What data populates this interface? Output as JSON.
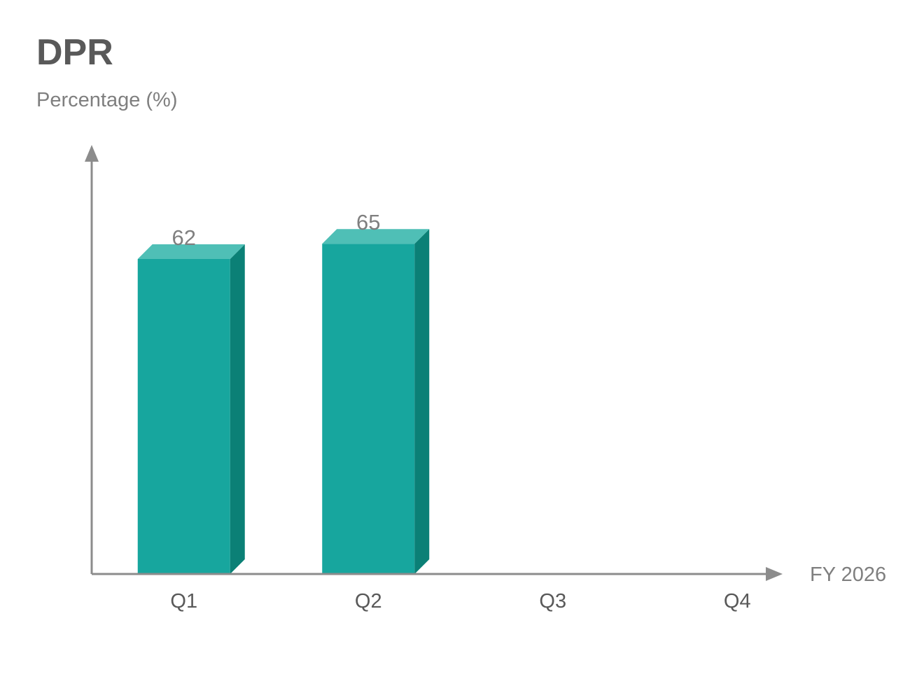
{
  "chart_data": {
    "type": "bar",
    "title": "DPR",
    "ylabel": "Percentage (%)",
    "xlabel": "FY 2026",
    "categories": [
      "Q1",
      "Q2",
      "Q3",
      "Q4"
    ],
    "values": [
      62,
      65,
      null,
      null
    ],
    "value_labels": [
      "62",
      "65",
      "",
      ""
    ],
    "ylim": [
      0,
      80
    ],
    "grid": false,
    "legend": "none",
    "style": "3d",
    "colors": {
      "bar_front": "#17a69e",
      "bar_top": "#4fbfb6",
      "bar_side": "#0b8076",
      "axis": "#8c8c8c",
      "title": "#595959",
      "text": "#7f7f7f"
    }
  }
}
